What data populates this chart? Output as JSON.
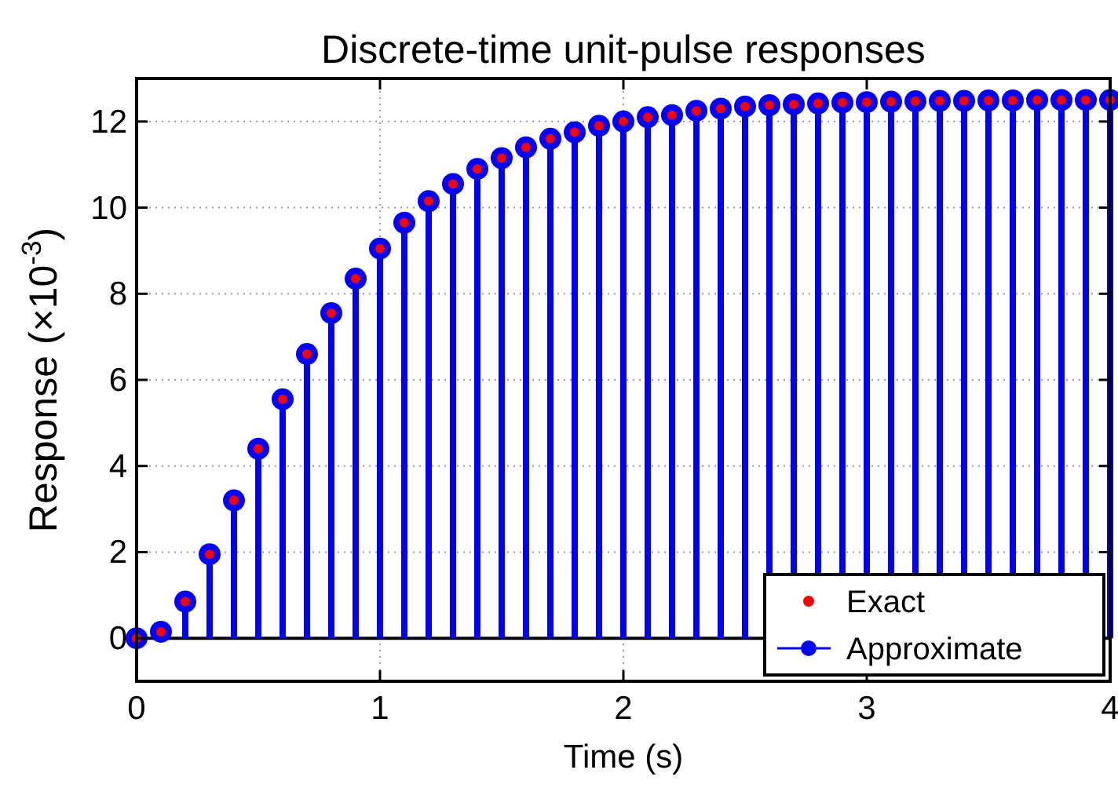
{
  "chart_data": {
    "type": "lollipop",
    "title": "Discrete-time unit-pulse responses",
    "xlabel": "Time (s)",
    "ylabel": "Response (×10$^{-3}$)",
    "x": [
      0,
      0.1,
      0.2,
      0.3,
      0.4,
      0.5,
      0.6,
      0.7,
      0.8,
      0.9,
      1,
      1.1,
      1.2,
      1.3,
      1.4,
      1.5,
      1.6,
      1.7,
      1.8,
      1.9,
      2,
      2.1,
      2.2,
      2.3,
      2.4,
      2.5,
      2.6,
      2.7,
      2.8,
      2.9,
      3,
      3.1,
      3.2,
      3.3,
      3.4,
      3.5,
      3.6,
      3.7,
      3.8,
      3.9,
      4
    ],
    "series": [
      {
        "name": "Exact",
        "type": "scatter",
        "color": "#ff0000",
        "marker": "circle",
        "values": [
          0,
          0.15,
          0.85,
          1.95,
          3.2,
          4.4,
          5.55,
          6.6,
          7.55,
          8.35,
          9.05,
          9.65,
          10.15,
          10.55,
          10.9,
          11.15,
          11.4,
          11.6,
          11.75,
          11.9,
          12.0,
          12.1,
          12.15,
          12.25,
          12.3,
          12.35,
          12.38,
          12.4,
          12.42,
          12.44,
          12.45,
          12.46,
          12.47,
          12.48,
          12.48,
          12.49,
          12.49,
          12.5,
          12.5,
          12.5,
          12.5
        ]
      },
      {
        "name": "Approximate",
        "color": "#0000ff",
        "marker": "circle",
        "values": [
          0,
          0.15,
          0.85,
          1.95,
          3.2,
          4.4,
          5.55,
          6.6,
          7.55,
          8.35,
          9.05,
          9.65,
          10.15,
          10.55,
          10.9,
          11.15,
          11.4,
          11.6,
          11.75,
          11.9,
          12.0,
          12.1,
          12.15,
          12.25,
          12.3,
          12.35,
          12.38,
          12.4,
          12.42,
          12.44,
          12.45,
          12.46,
          12.47,
          12.48,
          12.48,
          12.49,
          12.49,
          12.5,
          12.5,
          12.5,
          12.5
        ]
      }
    ],
    "xlim": [
      0,
      4
    ],
    "xticks": [
      0,
      1,
      2,
      3,
      4
    ],
    "ylim": [
      -1,
      13
    ],
    "yticks": [
      0,
      2,
      4,
      6,
      8,
      10,
      12
    ],
    "grid": true,
    "legend": "bottom right"
  }
}
